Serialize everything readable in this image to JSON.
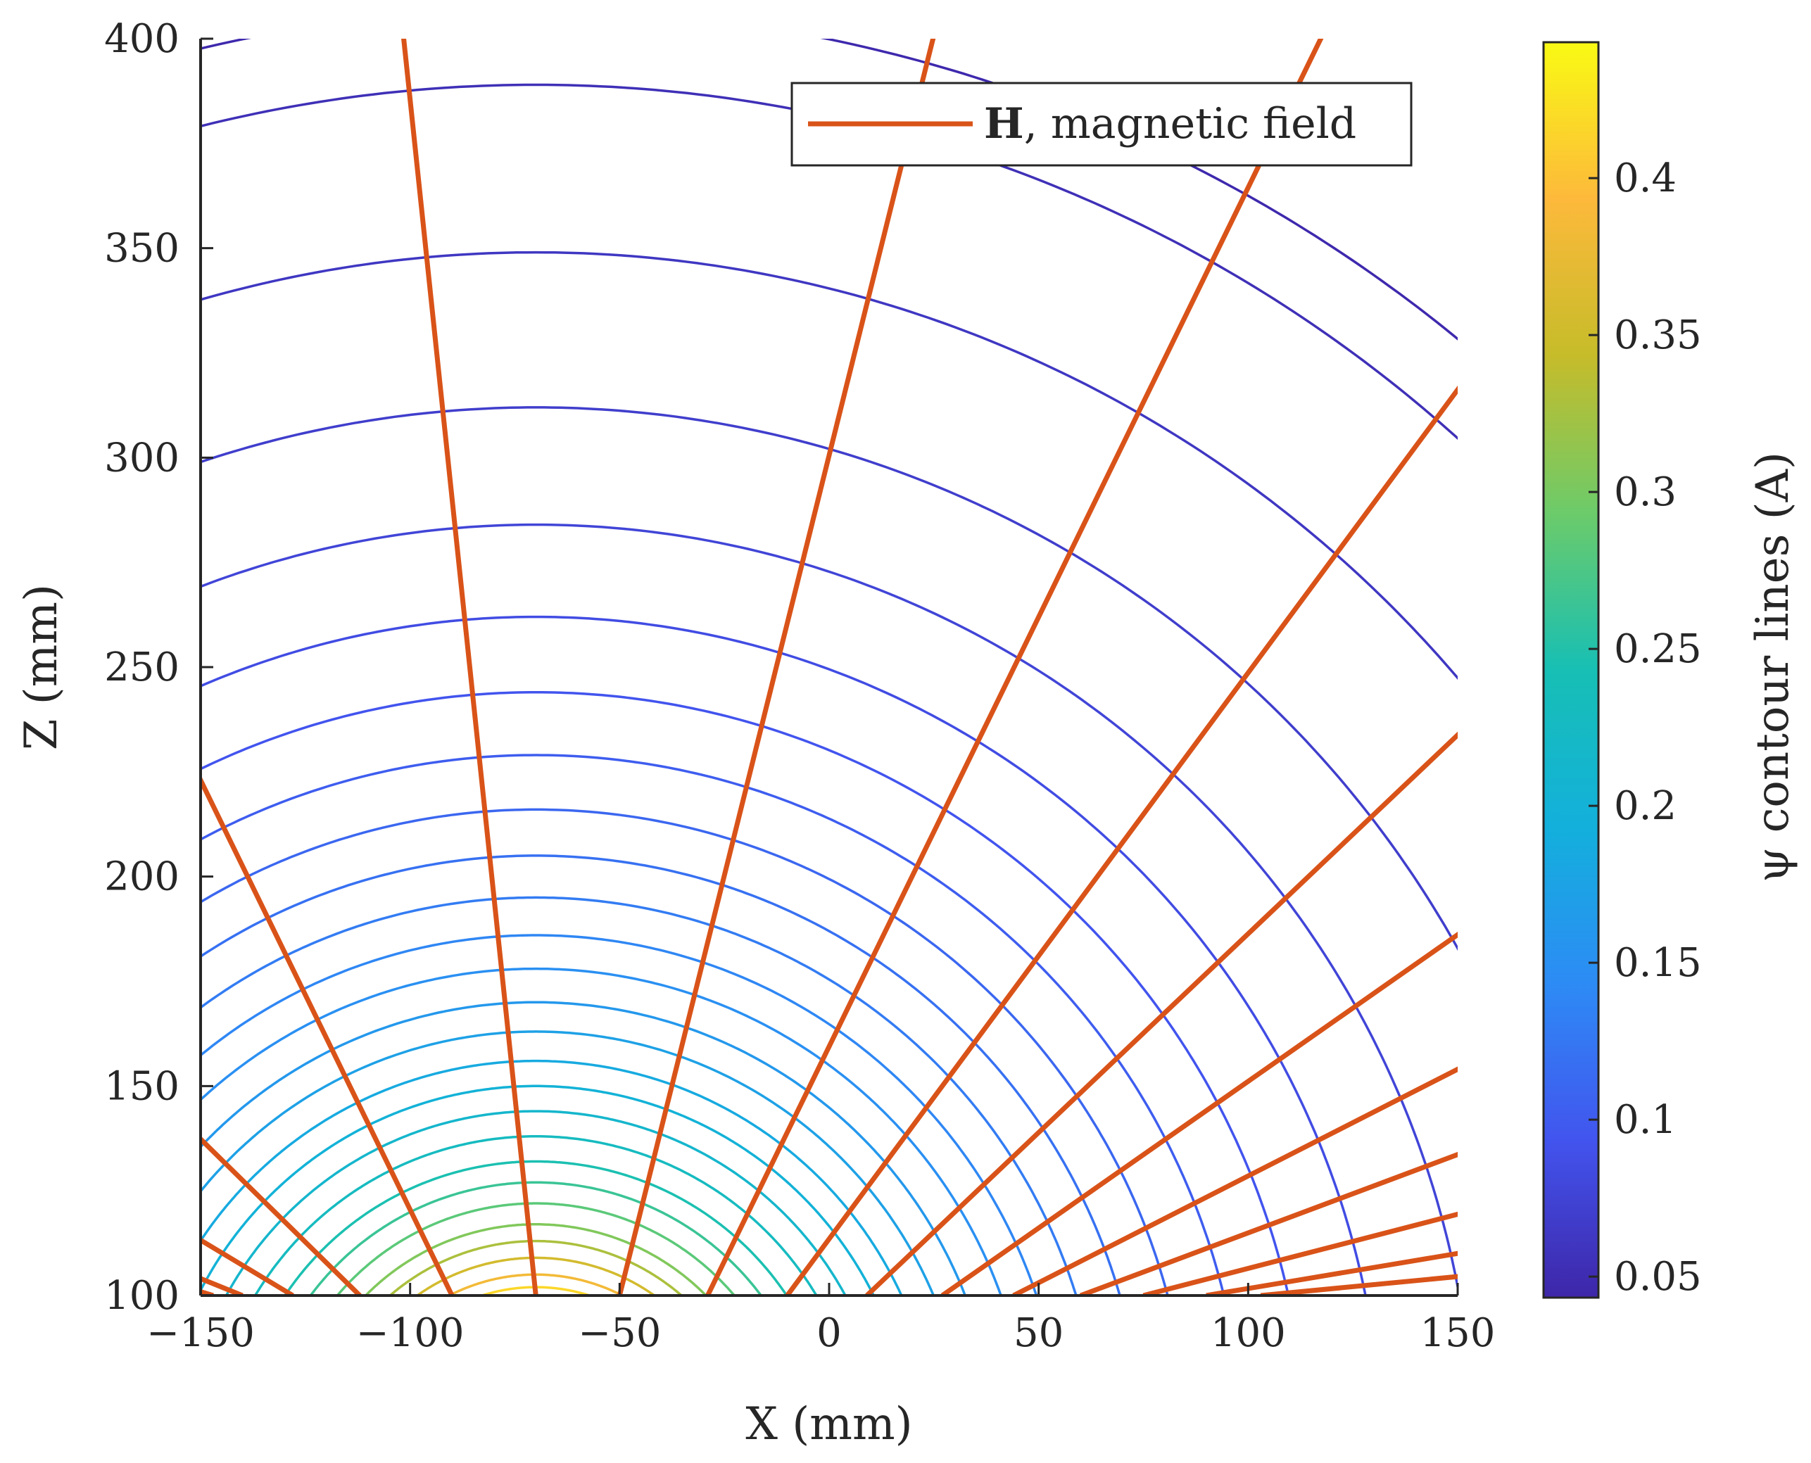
{
  "chart_data": {
    "type": "contour",
    "title": "",
    "xlabel": "X (mm)",
    "ylabel": "Z (mm)",
    "xlim": [
      -150,
      150
    ],
    "ylim": [
      100,
      400
    ],
    "xticks": [
      -150,
      -100,
      -50,
      0,
      50,
      100,
      150
    ],
    "xtick_labels": [
      "−150",
      "−100",
      "−50",
      "0",
      "50",
      "100",
      "150"
    ],
    "yticks": [
      100,
      150,
      200,
      250,
      300,
      350,
      400
    ],
    "ytick_labels": [
      "100",
      "150",
      "200",
      "250",
      "300",
      "350",
      "400"
    ],
    "grid": false,
    "legend": {
      "location": "top-right",
      "entries": [
        {
          "label_bold": "H",
          "label_rest": ", magnetic field",
          "color": "#D95319"
        }
      ]
    },
    "field_source": {
      "x": -70,
      "z": 60
    },
    "series": [
      {
        "name": "psi contour lines",
        "type": "contour",
        "colormap": "parula",
        "levels": [
          0.0467,
          0.0542,
          0.0617,
          0.0693,
          0.0771,
          0.0851,
          0.0932,
          0.1017,
          0.1105,
          0.1197,
          0.1293,
          0.1394,
          0.15,
          0.1612,
          0.173,
          0.1856,
          0.199,
          0.2134,
          0.2288,
          0.2455,
          0.2636,
          0.2833,
          0.3048,
          0.3286,
          0.3548,
          0.3839,
          0.4164,
          0.4528
        ],
        "apex_z": [
          407,
          389,
          349,
          312,
          284,
          262,
          244,
          229,
          216,
          205,
          195,
          186,
          178,
          170,
          163,
          156,
          150,
          144,
          138,
          132,
          127,
          122,
          117,
          113,
          109,
          105,
          102,
          100
        ]
      },
      {
        "name": "H, magnetic field",
        "type": "line",
        "color": "#D95319",
        "lines": [
          {
            "x0": -70,
            "angle_deg": 96
          },
          {
            "x0": -90,
            "angle_deg": 116
          },
          {
            "x0": -112,
            "angle_deg": 135.5
          },
          {
            "x0": -128,
            "angle_deg": 149
          },
          {
            "x0": -140,
            "angle_deg": 158
          },
          {
            "x0": -147,
            "angle_deg": 163
          },
          {
            "x0": -50,
            "angle_deg": 76
          },
          {
            "x0": -29,
            "angle_deg": 64
          },
          {
            "x0": -10,
            "angle_deg": 53.5
          },
          {
            "x0": 9,
            "angle_deg": 43.5
          },
          {
            "x0": 27,
            "angle_deg": 35
          },
          {
            "x0": 44,
            "angle_deg": 27
          },
          {
            "x0": 60,
            "angle_deg": 20.5
          },
          {
            "x0": 75,
            "angle_deg": 14.5
          },
          {
            "x0": 90,
            "angle_deg": 9.5
          },
          {
            "x0": 103,
            "angle_deg": 5.5
          }
        ]
      }
    ],
    "colorbar": {
      "label": "ψ contour lines (A)",
      "range": [
        0.0433,
        0.4433
      ],
      "ticks": [
        0.05,
        0.1,
        0.15,
        0.2,
        0.25,
        0.3,
        0.35,
        0.4
      ],
      "tick_labels": [
        "0.05",
        "0.1",
        "0.15",
        "0.2",
        "0.25",
        "0.3",
        "0.35",
        "0.4"
      ],
      "colormap_stops": [
        "#3E26A8",
        "#4254EE",
        "#2D8BF5",
        "#13B0DC",
        "#17BFB4",
        "#6CCB6A",
        "#C6BC2A",
        "#FDB93B",
        "#F9FA14"
      ]
    }
  }
}
